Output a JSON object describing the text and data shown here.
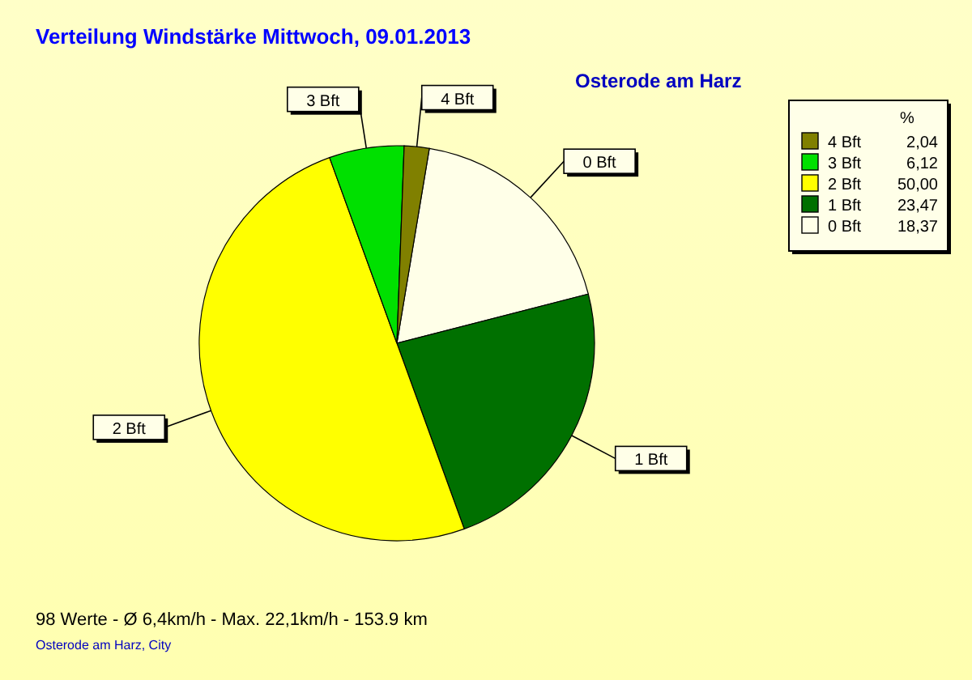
{
  "chart_data": {
    "type": "pie",
    "title": "Verteilung Windstärke  Mittwoch, 09.01.2013",
    "subtitle": "Osterode am Harz",
    "legend_title": "%",
    "legend": "top right",
    "categories": [
      "0 Bft",
      "1 Bft",
      "2 Bft",
      "3 Bft",
      "4 Bft"
    ],
    "values": [
      18.37,
      23.47,
      50.0,
      6.12,
      2.04
    ],
    "value_labels": [
      "18,37",
      "23,47",
      "50,00",
      "6,12",
      "2,04"
    ],
    "colors": [
      "#ffffe8",
      "#007000",
      "#ffff00",
      "#00e000",
      "#808000"
    ],
    "annotations": [
      "98 Werte   -   Ø 6,4km/h  -  Max. 22,1km/h   -   153.9 km",
      "Osterode am Harz, City"
    ]
  }
}
